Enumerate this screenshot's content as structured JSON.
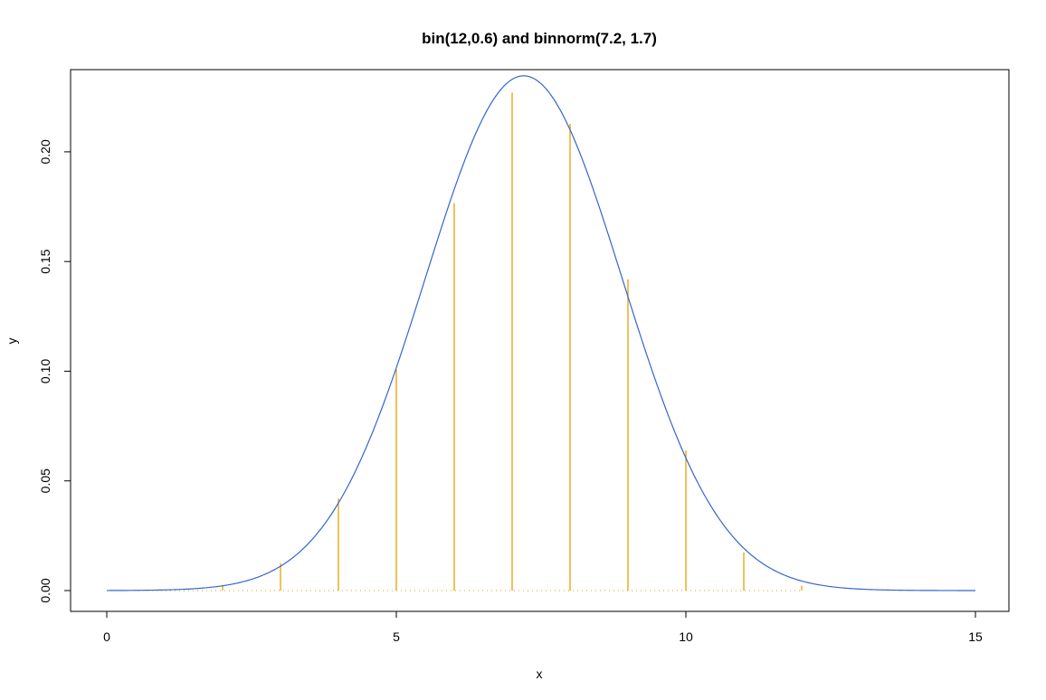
{
  "chart_data": {
    "type": "line",
    "title": "bin(12,0.6) and binnorm(7.2, 1.7)",
    "xlabel": "x",
    "ylabel": "y",
    "xlim": [
      0,
      15
    ],
    "ylim": [
      0,
      0.235
    ],
    "x_ticks": [
      "0",
      "5",
      "10",
      "15"
    ],
    "y_ticks": [
      "0.00",
      "0.05",
      "0.10",
      "0.15",
      "0.20"
    ],
    "grid": false,
    "legend": "none",
    "series": [
      {
        "kind": "density-curve",
        "mean": 7.2,
        "sd": 1.7,
        "x_range": [
          0,
          15
        ],
        "color": "#3366cc"
      },
      {
        "kind": "spikes",
        "x": [
          0,
          1,
          2,
          3,
          4,
          5,
          6,
          7,
          8,
          9,
          10,
          11,
          12
        ],
        "values": [
          0.0,
          0.0,
          0.0025,
          0.0125,
          0.042,
          0.1009,
          0.1766,
          0.227,
          0.2128,
          0.1419,
          0.0639,
          0.0174,
          0.0022
        ],
        "color": "#e6a000"
      }
    ],
    "baseline": {
      "style": "dotted",
      "color": "#e6a000"
    }
  }
}
